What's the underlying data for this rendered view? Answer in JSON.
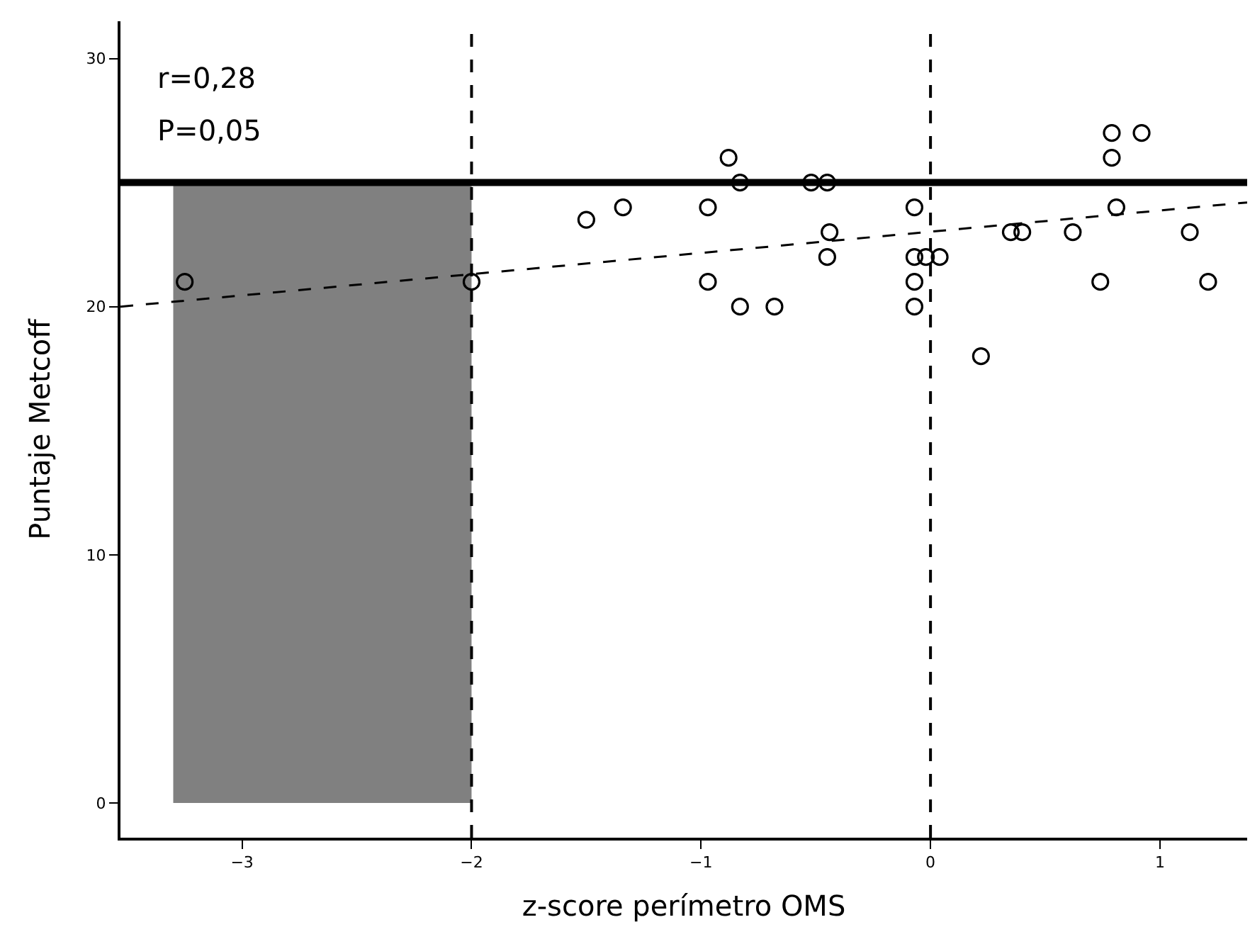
{
  "chart_data": {
    "type": "scatter",
    "xlabel": "z-score perímetro OMS",
    "ylabel": "Puntaje Metcoff",
    "annotations": [
      "r=0,28",
      "P=0,05"
    ],
    "xlim": [
      -3.53,
      1.38
    ],
    "ylim": [
      -1.4,
      31.5
    ],
    "xticks": [
      -3,
      -2,
      -1,
      0,
      1
    ],
    "yticks": [
      0,
      10,
      20,
      30
    ],
    "grid": false,
    "marker": "circle",
    "series": [
      {
        "type": "area",
        "marker": "none",
        "color": "#808080",
        "x": [
          -3.3,
          -2
        ],
        "values": [
          25,
          25
        ]
      },
      {
        "type": "line",
        "marker": "none",
        "color": "#000000",
        "line_style": "dashed",
        "x": [
          -3.53,
          1.38
        ],
        "values": [
          20.0,
          24.2
        ]
      },
      {
        "color": "#000000",
        "x": [
          -3.25,
          -2.0,
          -1.5,
          -1.34,
          -0.88,
          -0.83,
          -0.97,
          -0.52,
          -0.45,
          -0.44,
          -0.45,
          -0.97,
          -0.83,
          -0.68,
          -0.07,
          -0.07,
          -0.02,
          0.04,
          -0.07,
          -0.07,
          0.22,
          0.35,
          0.4,
          0.62,
          0.79,
          0.79,
          0.81,
          0.92,
          0.74,
          1.13,
          1.21
        ],
        "values": [
          21,
          21,
          23.5,
          24,
          26,
          25,
          24,
          25,
          25,
          23,
          22,
          21,
          20,
          20,
          24,
          22,
          22,
          22,
          21,
          20,
          18,
          23,
          23,
          23,
          27,
          26,
          24,
          27,
          21,
          23,
          21
        ]
      }
    ],
    "ref_lines": [
      {
        "axis": "x",
        "value": -2,
        "line_style": "dashed",
        "color": "#000000"
      },
      {
        "axis": "x",
        "value": 0,
        "line_style": "dashed",
        "color": "#000000"
      },
      {
        "axis": "y",
        "value": 25,
        "line_style": "solid",
        "color": "#000000"
      }
    ]
  }
}
